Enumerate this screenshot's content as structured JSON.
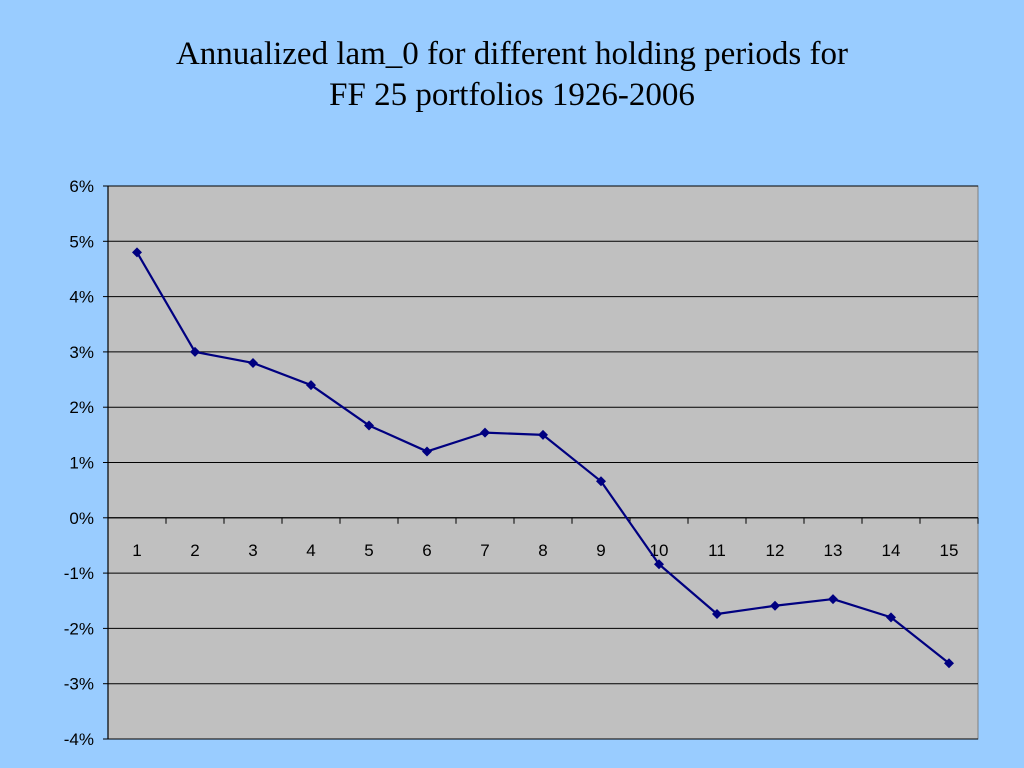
{
  "slide": {
    "title_line1": "Annualized lam_0 for different holding periods for",
    "title_line2": "FF 25 portfolios 1926-2006"
  },
  "colors": {
    "background": "#99ccff",
    "plot_area": "#c0c0c0",
    "series_line": "#000080",
    "gridline": "#000000"
  },
  "chart_data": {
    "type": "line",
    "title": "Annualized lam_0 for different holding periods for FF 25 portfolios 1926-2006",
    "xlabel": "",
    "ylabel": "",
    "categories": [
      "1",
      "2",
      "3",
      "4",
      "5",
      "6",
      "7",
      "8",
      "9",
      "10",
      "11",
      "12",
      "13",
      "14",
      "15"
    ],
    "series": [
      {
        "values": [
          0.048,
          0.03,
          0.028,
          0.024,
          0.0167,
          0.012,
          0.0154,
          0.015,
          0.0066,
          -0.0084,
          -0.0174,
          -0.0159,
          -0.0147,
          -0.018,
          -0.0263
        ]
      }
    ],
    "ylim": [
      -0.04,
      0.06
    ],
    "yticks": [
      "6%",
      "5%",
      "4%",
      "3%",
      "2%",
      "1%",
      "0%",
      "-1%",
      "-2%",
      "-3%",
      "-4%"
    ],
    "grid": true,
    "legend": "none",
    "marker": "diamond"
  }
}
